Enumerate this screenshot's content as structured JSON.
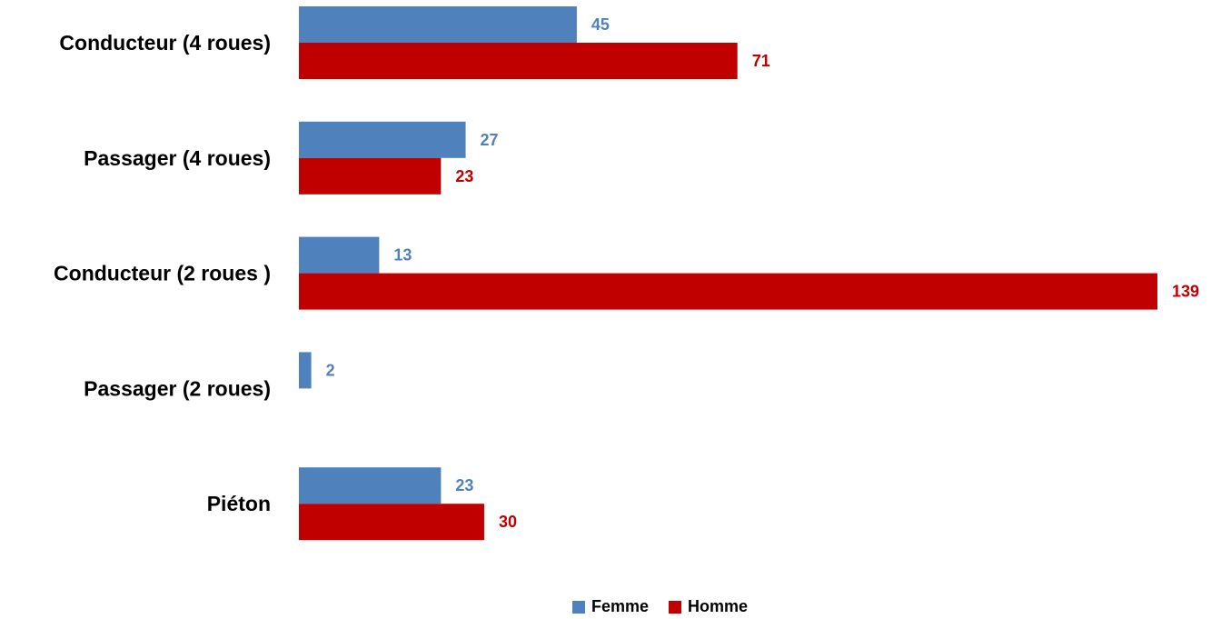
{
  "chart_data": {
    "type": "bar",
    "orientation": "horizontal",
    "categories": [
      "Conducteur (4 roues)",
      "Passager (4 roues)",
      "Conducteur (2 roues )",
      "Passager (2 roues)",
      "Piéton"
    ],
    "series": [
      {
        "name": "Femme",
        "color": "#4F81BD",
        "values": [
          45,
          27,
          13,
          2,
          23
        ]
      },
      {
        "name": "Homme",
        "color": "#C00000",
        "values": [
          71,
          23,
          139,
          null,
          30
        ]
      }
    ],
    "xlim": [
      0,
      139
    ],
    "grid": false,
    "legend_position": "bottom",
    "data_labels": true
  },
  "legend": {
    "items": [
      {
        "label": "Femme",
        "color": "#4F81BD"
      },
      {
        "label": "Homme",
        "color": "#C00000"
      }
    ]
  }
}
